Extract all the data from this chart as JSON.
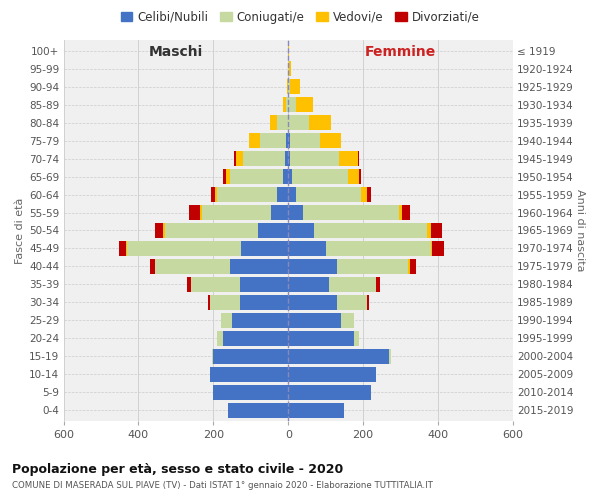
{
  "age_groups": [
    "0-4",
    "5-9",
    "10-14",
    "15-19",
    "20-24",
    "25-29",
    "30-34",
    "35-39",
    "40-44",
    "45-49",
    "50-54",
    "55-59",
    "60-64",
    "65-69",
    "70-74",
    "75-79",
    "80-84",
    "85-89",
    "90-94",
    "95-99",
    "100+"
  ],
  "birth_years": [
    "2015-2019",
    "2010-2014",
    "2005-2009",
    "2000-2004",
    "1995-1999",
    "1990-1994",
    "1985-1989",
    "1980-1984",
    "1975-1979",
    "1970-1974",
    "1965-1969",
    "1960-1964",
    "1955-1959",
    "1950-1954",
    "1945-1949",
    "1940-1944",
    "1935-1939",
    "1930-1934",
    "1925-1929",
    "1920-1924",
    "≤ 1919"
  ],
  "colors": {
    "celibi": "#4472c4",
    "coniugati": "#c5d9a0",
    "vedovi": "#ffc000",
    "divorziati": "#c00000"
  },
  "maschi": {
    "celibi": [
      160,
      200,
      210,
      200,
      175,
      150,
      130,
      130,
      155,
      125,
      80,
      45,
      30,
      15,
      10,
      5,
      0,
      0,
      0,
      0,
      0
    ],
    "coniugati": [
      0,
      0,
      0,
      5,
      15,
      30,
      80,
      130,
      200,
      305,
      250,
      185,
      160,
      140,
      110,
      70,
      30,
      5,
      2,
      0,
      0
    ],
    "vedovi": [
      0,
      0,
      0,
      0,
      0,
      0,
      0,
      0,
      0,
      3,
      5,
      5,
      5,
      12,
      20,
      30,
      20,
      8,
      2,
      0,
      0
    ],
    "divorziati": [
      0,
      0,
      0,
      0,
      0,
      0,
      5,
      10,
      15,
      20,
      20,
      30,
      12,
      8,
      5,
      0,
      0,
      0,
      0,
      0,
      0
    ]
  },
  "femmine": {
    "celibi": [
      150,
      220,
      235,
      270,
      175,
      140,
      130,
      110,
      130,
      100,
      70,
      40,
      20,
      10,
      5,
      5,
      0,
      0,
      0,
      0,
      0
    ],
    "coniugati": [
      0,
      0,
      0,
      5,
      15,
      35,
      80,
      125,
      190,
      280,
      300,
      255,
      175,
      150,
      130,
      80,
      55,
      20,
      5,
      2,
      0
    ],
    "vedovi": [
      0,
      0,
      0,
      0,
      0,
      0,
      0,
      0,
      5,
      5,
      10,
      10,
      15,
      30,
      50,
      55,
      60,
      45,
      25,
      5,
      1
    ],
    "divorziati": [
      0,
      0,
      0,
      0,
      0,
      0,
      5,
      10,
      15,
      30,
      30,
      20,
      10,
      5,
      5,
      0,
      0,
      0,
      0,
      0,
      0
    ]
  },
  "xlim": 600,
  "title": "Popolazione per età, sesso e stato civile - 2020",
  "subtitle": "COMUNE DI MASERADA SUL PIAVE (TV) - Dati ISTAT 1° gennaio 2020 - Elaborazione TUTTITALIA.IT",
  "ylabel_left": "Fasce di età",
  "ylabel_right": "Anni di nascita",
  "xlabel_left": "Maschi",
  "xlabel_right": "Femmine",
  "bg_color": "#f0f0f0",
  "grid_color": "#cccccc"
}
